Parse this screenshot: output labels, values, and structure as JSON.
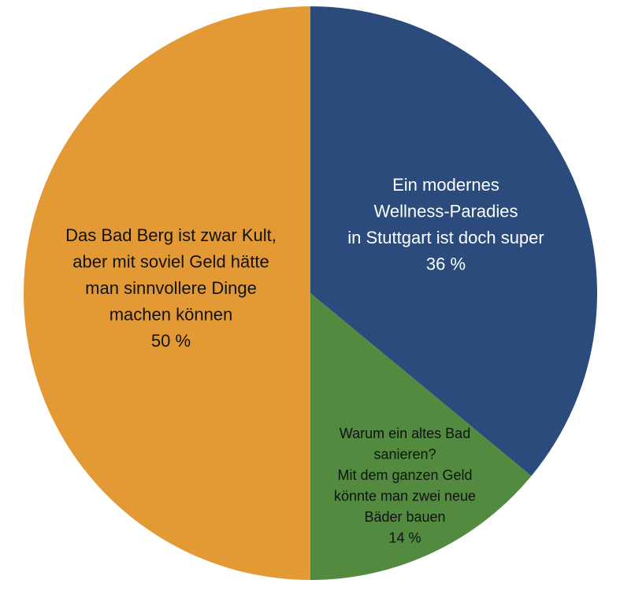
{
  "chart_data": {
    "type": "pie",
    "slices": [
      {
        "key": "wellness",
        "lines": [
          "Ein modernes",
          "Wellness-Paradies",
          "in Stuttgart ist doch super",
          "36 %"
        ],
        "value": 36,
        "color": "#2a4b7c",
        "text_color": "#ffffff"
      },
      {
        "key": "neubau",
        "lines": [
          "Warum ein altes Bad",
          "sanieren?",
          "Mit dem ganzen Geld",
          "könnte man zwei neue",
          "Bäder bauen",
          "14 %"
        ],
        "value": 14,
        "color": "#528b40",
        "text_color": "#111111"
      },
      {
        "key": "kult",
        "lines": [
          "Das Bad Berg ist zwar Kult,",
          "aber mit soviel Geld hätte",
          "man sinnvollere Dinge",
          "machen können",
          "50 %"
        ],
        "value": 50,
        "color": "#e39a35",
        "text_color": "#111111"
      }
    ]
  }
}
